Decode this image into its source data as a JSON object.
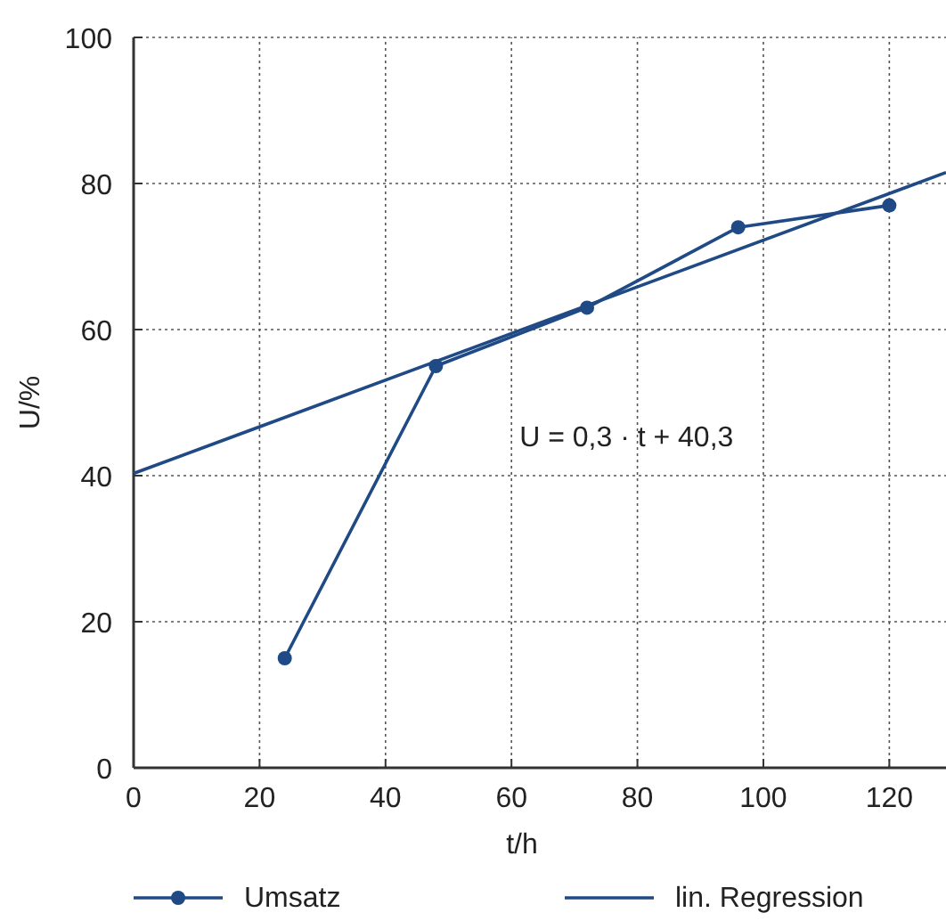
{
  "chart_data": {
    "type": "line",
    "xlabel": "t/h",
    "ylabel": "U/%",
    "x": [
      24,
      48,
      72,
      96,
      120
    ],
    "series": [
      {
        "name": "Umsatz",
        "color": "#1f4a85",
        "values": [
          15,
          55,
          63,
          74,
          77
        ],
        "marker": "circle"
      },
      {
        "name": "lin. Regression",
        "color": "#1f4a85",
        "x": [
          0,
          129
        ],
        "values": [
          40.3,
          81.5
        ],
        "marker": "none"
      }
    ],
    "xlim": [
      0,
      129
    ],
    "xticks": [
      0,
      20,
      40,
      60,
      80,
      100,
      120
    ],
    "ylim": [
      0,
      100
    ],
    "yticks": [
      0,
      20,
      40,
      60,
      80,
      100
    ],
    "grid": true,
    "legend": "bottom",
    "line_style": "solid",
    "annotations": [
      "U = 0,3 · t + 40,3"
    ]
  }
}
